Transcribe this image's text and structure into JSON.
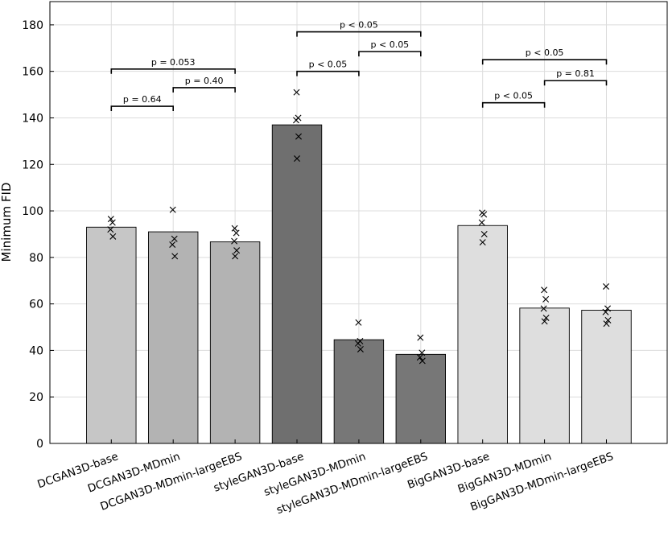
{
  "chart_data": {
    "type": "bar",
    "title": "",
    "xlabel": "",
    "ylabel": "Minimum FID",
    "ylim": [
      0,
      190
    ],
    "yticks": [
      0,
      20,
      40,
      60,
      80,
      100,
      120,
      140,
      160,
      180
    ],
    "grid": true,
    "categories": [
      "DCGAN3D-base",
      "DCGAN3D-MDmin",
      "DCGAN3D-MDmin-largeEBS",
      "styleGAN3D-base",
      "styleGAN3D-MDmin",
      "styleGAN3D-MDmin-largeEBS",
      "BigGAN3D-base",
      "BigGAN3D-MDmin",
      "BigGAN3D-MDmin-largeEBS"
    ],
    "values": [
      93,
      91,
      86.7,
      137,
      44.6,
      38.3,
      93.7,
      58.2,
      57.3
    ],
    "bar_colors": [
      "#c6c6c6",
      "#b3b3b3",
      "#b3b3b3",
      "#6f6f6f",
      "#777777",
      "#777777",
      "#dedede",
      "#dedede",
      "#dedede"
    ],
    "points": [
      [
        96.5,
        95,
        92,
        89
      ],
      [
        100.5,
        88,
        85.5,
        80.5
      ],
      [
        92.5,
        90.5,
        87,
        83,
        80.5
      ],
      [
        151,
        140,
        139,
        132,
        122.5
      ],
      [
        52,
        44,
        43,
        40.5
      ],
      [
        45.5,
        39,
        37,
        35.5
      ],
      [
        99.2,
        98.5,
        95,
        90,
        86.5
      ],
      [
        66,
        62,
        58,
        54,
        52.5
      ],
      [
        67.5,
        58,
        56.5,
        53,
        51.5
      ]
    ],
    "annotations": [
      {
        "from": 0,
        "to": 1,
        "y": 145,
        "label": "p = 0.64"
      },
      {
        "from": 1,
        "to": 2,
        "y": 153,
        "label": "p = 0.40"
      },
      {
        "from": 0,
        "to": 2,
        "y": 161,
        "label": "p = 0.053"
      },
      {
        "from": 3,
        "to": 4,
        "y": 160,
        "label": "p < 0.05"
      },
      {
        "from": 4,
        "to": 5,
        "y": 168.5,
        "label": "p < 0.05"
      },
      {
        "from": 3,
        "to": 5,
        "y": 177,
        "label": "p < 0.05"
      },
      {
        "from": 6,
        "to": 7,
        "y": 146.5,
        "label": "p < 0.05"
      },
      {
        "from": 7,
        "to": 8,
        "y": 156,
        "label": "p = 0.81"
      },
      {
        "from": 6,
        "to": 8,
        "y": 165,
        "label": "p < 0.05"
      }
    ]
  }
}
